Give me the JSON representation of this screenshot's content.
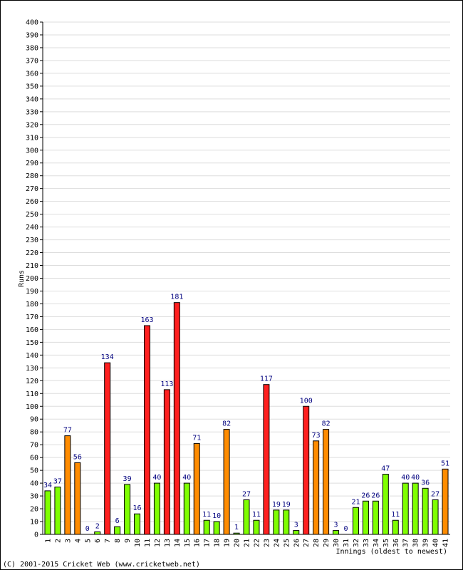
{
  "chart_data": {
    "type": "bar",
    "title": "",
    "xlabel": "Innings (oldest to newest)",
    "ylabel": "Runs",
    "ylim": [
      0,
      400
    ],
    "ytick_step": 10,
    "grid": true,
    "categories": [
      "1",
      "2",
      "3",
      "4",
      "5",
      "6",
      "7",
      "8",
      "9",
      "10",
      "11",
      "12",
      "13",
      "14",
      "15",
      "16",
      "17",
      "18",
      "19",
      "20",
      "21",
      "22",
      "23",
      "24",
      "25",
      "26",
      "27",
      "28",
      "29",
      "30",
      "31",
      "32",
      "33",
      "34",
      "35",
      "36",
      "37",
      "38",
      "39",
      "40",
      "41"
    ],
    "values": [
      34,
      37,
      77,
      56,
      0,
      2,
      134,
      6,
      39,
      16,
      163,
      40,
      113,
      181,
      40,
      71,
      11,
      10,
      82,
      1,
      27,
      11,
      117,
      19,
      19,
      3,
      100,
      73,
      82,
      3,
      0,
      21,
      26,
      26,
      47,
      11,
      40,
      40,
      36,
      27,
      51
    ],
    "colors": {
      "under_50": "#7fff00",
      "fifty_to_99": "#ff8c00",
      "hundred_plus": "#ff2020",
      "value_label": "#00007f",
      "grid": "#dddddd"
    }
  },
  "footer": {
    "copyright": "(C) 2001-2015 Cricket Web (www.cricketweb.net)"
  }
}
